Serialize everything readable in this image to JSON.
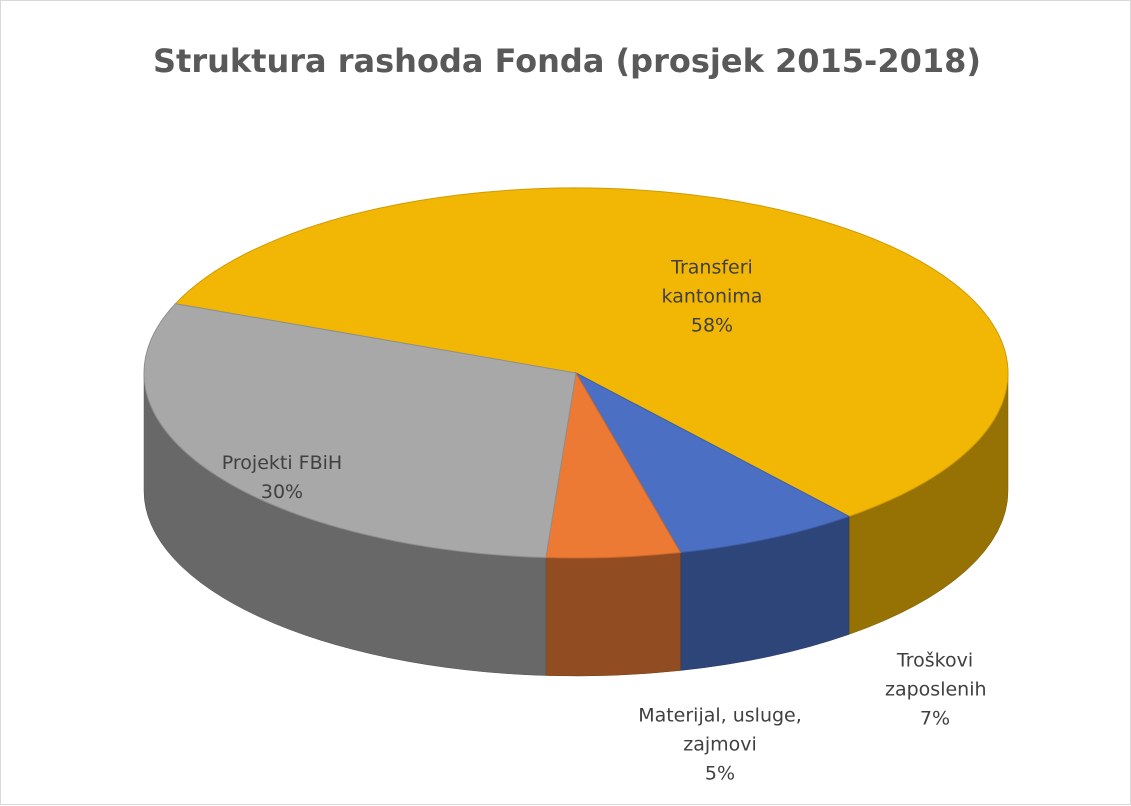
{
  "chart_data": {
    "type": "pie",
    "title": "Struktura rashoda Fonda (prosjek 2015-2018)",
    "categories": [
      "Transferi kantonima",
      "Troškovi zaposlenih",
      "Materijal, usluge, zajmovi",
      "Projekti FBiH"
    ],
    "values": [
      58,
      7,
      5,
      30
    ],
    "value_labels": [
      "58%",
      "7%",
      "5%",
      "30%"
    ],
    "colors": [
      "#f2b705",
      "#4a6fc3",
      "#ec7a35",
      "#a8a8a8"
    ]
  }
}
